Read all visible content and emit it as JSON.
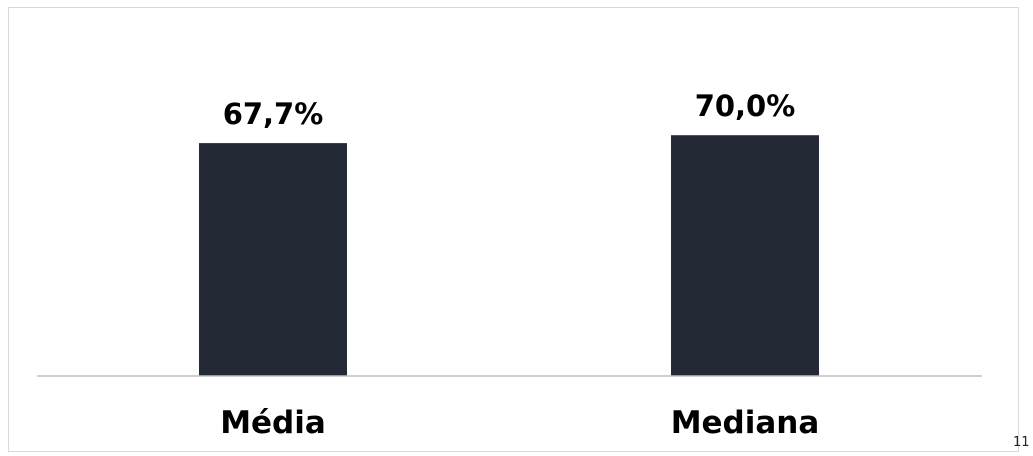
{
  "slide": {
    "page_number": "11"
  },
  "colors": {
    "bar": "#232a35",
    "axis": "#bfbfbf",
    "label": "#000000"
  },
  "chart_data": {
    "type": "bar",
    "categories": [
      "Média",
      "Mediana"
    ],
    "values": [
      67.7,
      70.0
    ],
    "value_labels": [
      "67,7%",
      "70,0%"
    ],
    "title": "",
    "xlabel": "",
    "ylabel": "",
    "ylim": [
      0,
      100
    ],
    "grid": false,
    "legend": "none"
  }
}
